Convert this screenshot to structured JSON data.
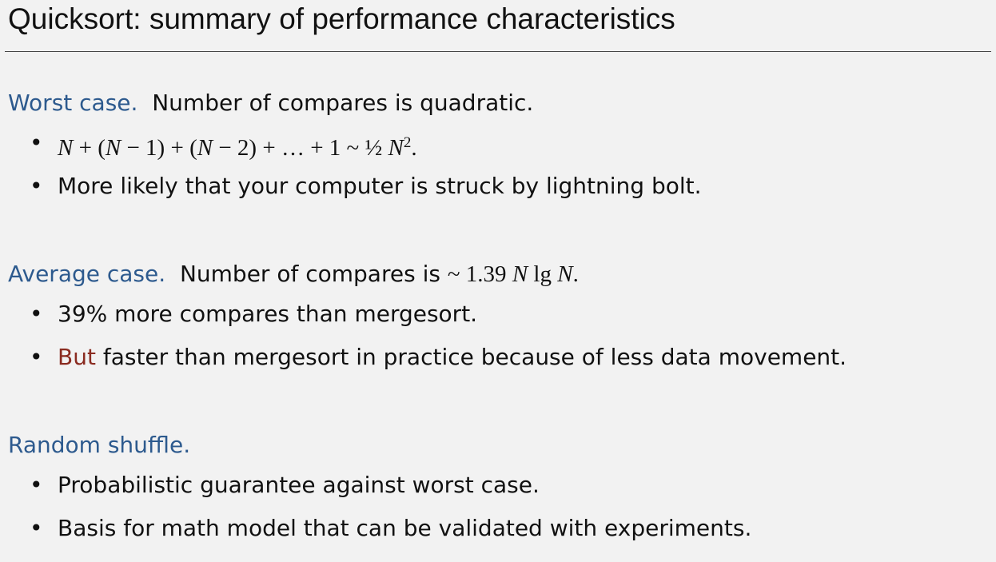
{
  "title": "Quicksort:  summary of performance characteristics",
  "sections": [
    {
      "heading_keyword": "Worst case.",
      "heading_text": "Number of compares is quadratic.",
      "bullets": [
        {
          "math_parts": [
            "N",
            " + (",
            "N",
            " − 1) + (",
            "N",
            " − 2)  + … + 1  ~  ½ ",
            "N",
            "2",
            "."
          ]
        },
        {
          "text": "More likely that your computer is struck by lightning bolt."
        }
      ]
    },
    {
      "heading_keyword": "Average case.",
      "heading_text": "Number of compares is",
      "heading_math_parts": [
        "~ 1.39 ",
        "N",
        " lg ",
        "N",
        "."
      ],
      "bullets": [
        {
          "text": "39% more compares than mergesort."
        },
        {
          "emph": "But",
          "text": " faster than mergesort in practice because of less data movement."
        }
      ]
    },
    {
      "heading_keyword": "Random shuffle.",
      "bullets": [
        {
          "text": "Probabilistic guarantee against worst case."
        },
        {
          "text": "Basis for math model that can be validated with experiments."
        }
      ]
    }
  ],
  "bullet_glyph": "•",
  "colors": {
    "background": "#f2f2f2",
    "keyword": "#2d5a8e",
    "emphasis": "#8a2b20",
    "text": "#111111"
  }
}
